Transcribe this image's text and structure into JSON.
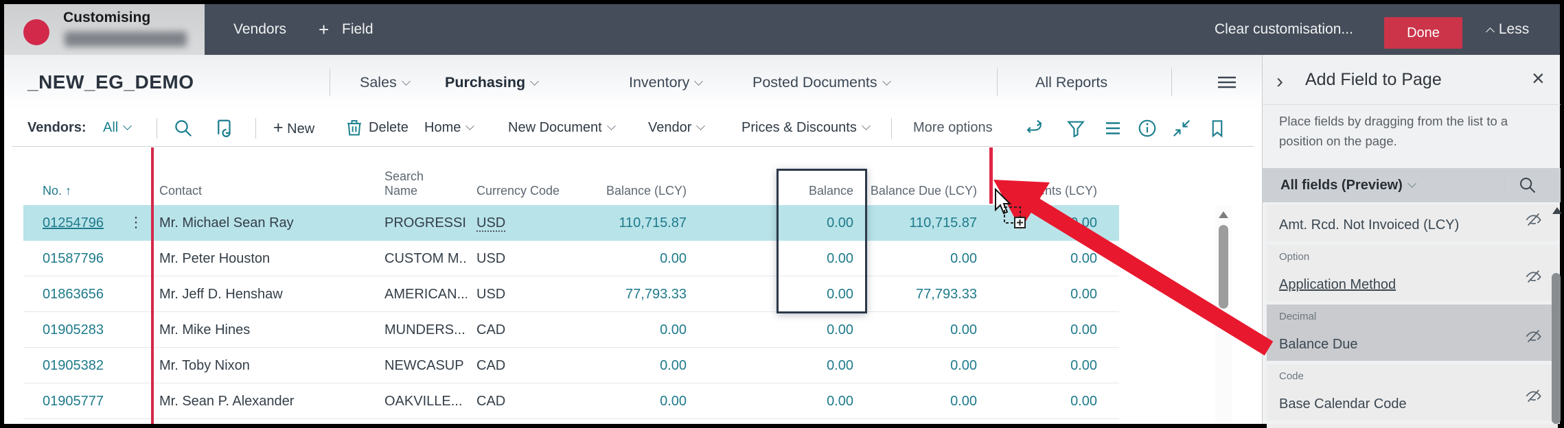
{
  "top_bar": {
    "customising_label": "Customising",
    "tab_vendors": "Vendors",
    "tab_field_plus": "+",
    "tab_field": "Field",
    "clear_customisation": "Clear customisation...",
    "done": "Done",
    "less": "Less"
  },
  "nav": {
    "company": "_NEW_EG_DEMO",
    "menu_sales": "Sales",
    "menu_purchasing": "Purchasing",
    "menu_inventory": "Inventory",
    "menu_posted_documents": "Posted Documents",
    "menu_all_reports": "All Reports"
  },
  "action_bar": {
    "caption": "Vendors:",
    "filter_value": "All",
    "new_label": "New",
    "new_plus": "+",
    "delete_label": "Delete",
    "home_label": "Home",
    "new_document_label": "New Document",
    "vendor_label": "Vendor",
    "prices_label": "Prices & Discounts",
    "more_options_label": "More options"
  },
  "table": {
    "columns": [
      "No.",
      "Contact",
      "Search Name",
      "Currency Code",
      "Balance (LCY)",
      "Balance",
      "Balance Due (LCY)",
      "Payments (LCY)"
    ],
    "sort_column": "No.",
    "sort_direction": "ascending",
    "sort_glyph": "↑",
    "row_menu_glyph": "⋮",
    "rows": [
      {
        "no": "01254796",
        "contact": "Mr. Michael Sean Ray",
        "search_name": "PROGRESSI...",
        "currency": "USD",
        "balance_lcy": "110,715.87",
        "balance": "0.00",
        "balance_due_lcy": "110,715.87",
        "payments_lcy": "0.00",
        "selected": true
      },
      {
        "no": "01587796",
        "contact": "Mr. Peter Houston",
        "search_name": "CUSTOM M...",
        "currency": "USD",
        "balance_lcy": "0.00",
        "balance": "0.00",
        "balance_due_lcy": "0.00",
        "payments_lcy": "0.00",
        "selected": false
      },
      {
        "no": "01863656",
        "contact": "Mr. Jeff D. Henshaw",
        "search_name": "AMERICAN...",
        "currency": "USD",
        "balance_lcy": "77,793.33",
        "balance": "0.00",
        "balance_due_lcy": "77,793.33",
        "payments_lcy": "0.00",
        "selected": false
      },
      {
        "no": "01905283",
        "contact": "Mr. Mike Hines",
        "search_name": "MUNDERS...",
        "currency": "CAD",
        "balance_lcy": "0.00",
        "balance": "0.00",
        "balance_due_lcy": "0.00",
        "payments_lcy": "0.00",
        "selected": false
      },
      {
        "no": "01905382",
        "contact": "Mr. Toby Nixon",
        "search_name": "NEWCASUP",
        "currency": "CAD",
        "balance_lcy": "0.00",
        "balance": "0.00",
        "balance_due_lcy": "0.00",
        "payments_lcy": "0.00",
        "selected": false
      },
      {
        "no": "01905777",
        "contact": "Mr. Sean P. Alexander",
        "search_name": "OAKVILLE...",
        "currency": "CAD",
        "balance_lcy": "0.00",
        "balance": "0.00",
        "balance_due_lcy": "0.00",
        "payments_lcy": "0.00",
        "selected": false
      }
    ]
  },
  "panel": {
    "collapse_glyph": "›",
    "title": "Add Field to Page",
    "close_glyph": "×",
    "description": "Place fields by dragging from the list to a position on the page.",
    "field_filter_label": "All fields (Preview)",
    "fields": [
      {
        "category": "",
        "label": "Amt. Rcd. Not Invoiced (LCY)",
        "selected": false
      },
      {
        "category": "Option",
        "label": "Application Method",
        "selected": false,
        "underlined": true
      },
      {
        "category": "Decimal",
        "label": "Balance Due",
        "selected": true
      },
      {
        "category": "Code",
        "label": "Base Calendar Code",
        "selected": false
      }
    ]
  },
  "icons": {
    "search": "magnifier",
    "analyse": "page-with-arrow",
    "delete": "trash-can",
    "share": "arrow-out-of-box",
    "filter": "funnel",
    "show-list": "three-lines",
    "info": "circle-i",
    "minimize": "inward-arrows",
    "bookmark": "flag",
    "hamburger": "three-lines",
    "hide-field": "eye-slash",
    "drag-copy": "dashed-box-plus",
    "cursor": "arrow-pointer"
  },
  "colors": {
    "accent_teal": "#1a7f8e",
    "selection_row": "#b8e3e9",
    "topbar": "#454d5a",
    "done_button": "#cb3449",
    "freeze_line": "#d2294a",
    "insert_line": "#e02746",
    "annotation_arrow": "#e8182e",
    "panel_bg": "#f0f1f2",
    "field_bar": "#ccd0d4",
    "card_selected": "#c9cbce"
  }
}
